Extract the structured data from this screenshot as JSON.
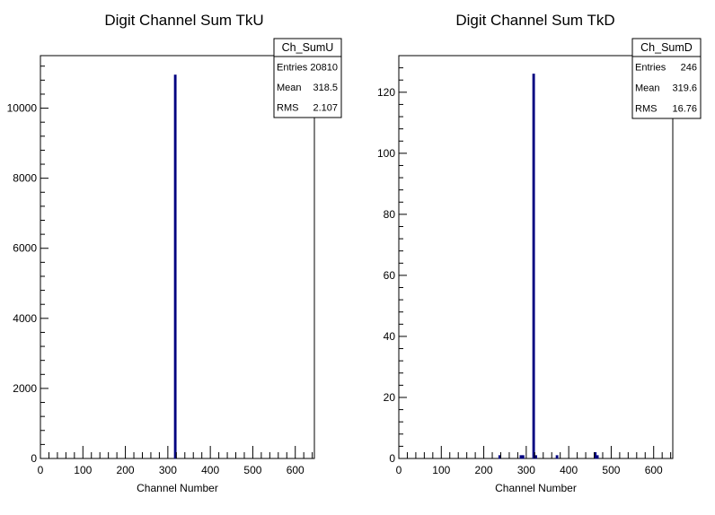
{
  "colors": {
    "bar": "#000080",
    "axis": "#000000",
    "background": "#ffffff"
  },
  "chart_data": [
    {
      "type": "bar",
      "title": "Digit Channel Sum TkU",
      "xlabel": "Channel Number",
      "ylabel": "",
      "xlim": [
        0,
        645
      ],
      "ylim": [
        0,
        11500
      ],
      "x_ticks": [
        0,
        100,
        200,
        300,
        400,
        500,
        600
      ],
      "y_ticks": [
        0,
        2000,
        4000,
        6000,
        8000,
        10000
      ],
      "bin_width": 5,
      "bins": [
        {
          "x": 315,
          "value": 10950
        }
      ],
      "stats_box": {
        "name": "Ch_SumU",
        "rows": [
          {
            "label": "Entries",
            "value": "20810"
          },
          {
            "label": "Mean",
            "value": "318.5"
          },
          {
            "label": "RMS",
            "value": "2.107"
          }
        ]
      }
    },
    {
      "type": "bar",
      "title": "Digit Channel Sum TkD",
      "xlabel": "Channel Number",
      "ylabel": "",
      "xlim": [
        0,
        645
      ],
      "ylim": [
        0,
        132
      ],
      "x_ticks": [
        0,
        100,
        200,
        300,
        400,
        500,
        600
      ],
      "y_ticks": [
        0,
        20,
        40,
        60,
        80,
        100,
        120
      ],
      "bin_width": 5,
      "bins": [
        {
          "x": 235,
          "value": 1
        },
        {
          "x": 285,
          "value": 1
        },
        {
          "x": 290,
          "value": 1
        },
        {
          "x": 315,
          "value": 126
        },
        {
          "x": 320,
          "value": 1
        },
        {
          "x": 370,
          "value": 1
        },
        {
          "x": 460,
          "value": 2
        },
        {
          "x": 465,
          "value": 1
        }
      ],
      "stats_box": {
        "name": "Ch_SumD",
        "rows": [
          {
            "label": "Entries",
            "value": "246"
          },
          {
            "label": "Mean",
            "value": "319.6"
          },
          {
            "label": "RMS",
            "value": "16.76"
          }
        ]
      }
    }
  ]
}
